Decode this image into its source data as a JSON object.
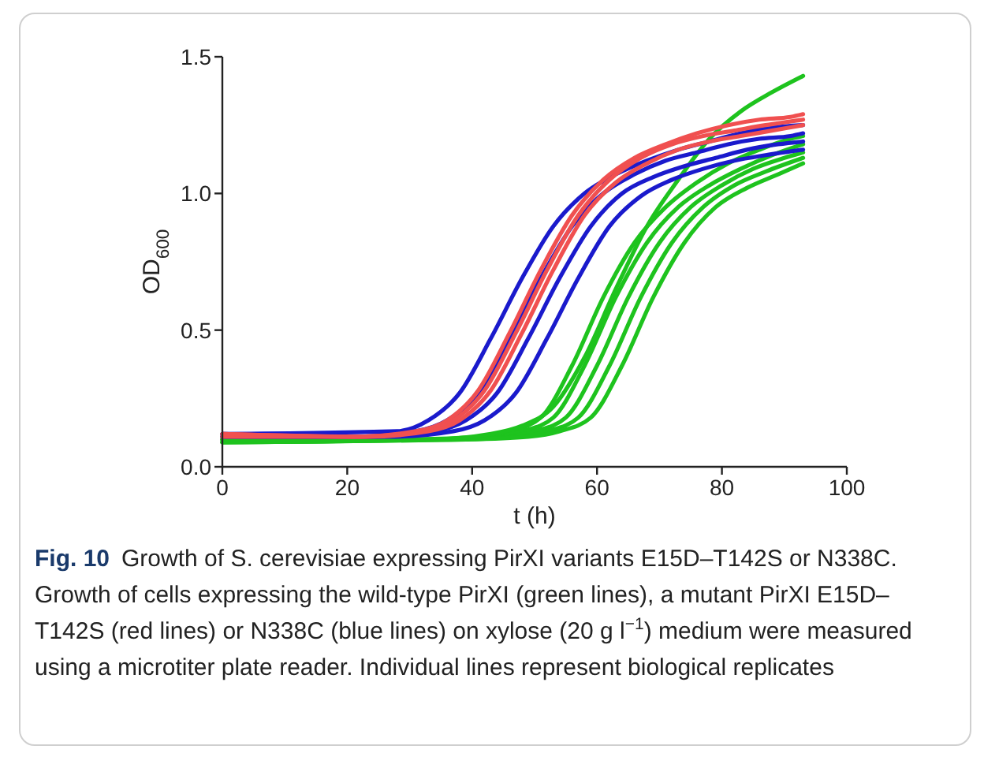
{
  "chart_data": {
    "type": "line",
    "xlabel": "t (h)",
    "ylabel": "OD$_{600}$",
    "xlim": [
      0,
      100
    ],
    "xticks": [
      0,
      20,
      40,
      60,
      80,
      100
    ],
    "ylim": [
      0,
      1.5
    ],
    "yticks": [
      {
        "value": 0,
        "label": "0.0"
      },
      {
        "value": 0.5,
        "label": "0.5"
      },
      {
        "value": 1,
        "label": "1.0"
      },
      {
        "value": 1.5,
        "label": "1.5"
      }
    ],
    "grid": false,
    "annotations": [
      "Fig. 10",
      "Growth of S. cerevisiae expressing PirXI variants E15D–T142S or N338C. Growth of cells expressing the wild-type PirXI (green lines), a mutant PirXI E15D–T142S (red lines) or N338C (blue lines) on xylose (20 g l$^{−1}$) medium were measured using a microtiter plate reader. Individual lines represent biological replicates"
    ],
    "series": [
      {
        "color": "#1ec31e",
        "x": [
          0,
          31,
          41,
          46,
          51,
          56,
          61,
          66,
          71,
          76,
          81,
          86,
          91,
          93
        ],
        "values": [
          0.09,
          0.1,
          0.11,
          0.13,
          0.18,
          0.37,
          0.62,
          0.82,
          0.95,
          1.04,
          1.11,
          1.16,
          1.2,
          1.21
        ]
      },
      {
        "color": "#1ec31e",
        "x": [
          0,
          33,
          43,
          48,
          53,
          58,
          63,
          68,
          73,
          78,
          83,
          88,
          93
        ],
        "values": [
          0.1,
          0.1,
          0.11,
          0.13,
          0.18,
          0.37,
          0.62,
          0.82,
          0.95,
          1.03,
          1.09,
          1.14,
          1.18
        ]
      },
      {
        "color": "#1ec31e",
        "x": [
          0,
          35,
          45,
          50,
          55,
          60,
          65,
          70,
          75,
          80,
          85,
          90,
          93
        ],
        "values": [
          0.09,
          0.1,
          0.11,
          0.13,
          0.18,
          0.37,
          0.62,
          0.82,
          0.95,
          1.03,
          1.09,
          1.13,
          1.15
        ]
      },
      {
        "color": "#1ec31e",
        "x": [
          0,
          37,
          47,
          52,
          57,
          62,
          67,
          72,
          77,
          82,
          87,
          93
        ],
        "values": [
          0.1,
          0.1,
          0.11,
          0.13,
          0.18,
          0.37,
          0.62,
          0.82,
          0.95,
          1.03,
          1.08,
          1.13
        ]
      },
      {
        "color": "#1ec31e",
        "x": [
          0,
          39,
          49,
          54,
          59,
          64,
          69,
          74,
          79,
          84,
          89,
          93
        ],
        "values": [
          0.09,
          0.1,
          0.11,
          0.13,
          0.18,
          0.37,
          0.62,
          0.82,
          0.95,
          1.02,
          1.07,
          1.11
        ]
      },
      {
        "color": "#1ec31e",
        "x": [
          0,
          33,
          43,
          48,
          53,
          58,
          63,
          68,
          73,
          78,
          83,
          88,
          93
        ],
        "values": [
          0.1,
          0.1,
          0.12,
          0.15,
          0.22,
          0.4,
          0.65,
          0.88,
          1.05,
          1.2,
          1.3,
          1.37,
          1.43
        ]
      },
      {
        "color": "#1a1acc",
        "x": [
          0,
          18,
          28,
          33,
          38,
          43,
          48,
          53,
          58,
          63,
          68,
          73,
          78,
          83,
          88,
          93
        ],
        "values": [
          0.12,
          null,
          0.13,
          0.17,
          0.27,
          0.47,
          0.69,
          0.88,
          1.0,
          1.07,
          1.12,
          1.16,
          1.19,
          1.22,
          1.24,
          1.25
        ]
      },
      {
        "color": "#1a1acc",
        "x": [
          0,
          21,
          31,
          36,
          41,
          46,
          51,
          56,
          61,
          66,
          71,
          76,
          81,
          86,
          91,
          93
        ],
        "values": [
          0.11,
          0.11,
          0.13,
          0.17,
          0.27,
          0.47,
          0.69,
          0.88,
          1.0,
          1.07,
          1.12,
          1.15,
          1.18,
          1.2,
          1.21,
          1.22
        ]
      },
      {
        "color": "#1a1acc",
        "x": [
          0,
          24,
          34,
          39,
          44,
          49,
          54,
          59,
          64,
          69,
          74,
          79,
          84,
          89,
          93
        ],
        "values": [
          0.12,
          0.11,
          0.13,
          0.17,
          0.27,
          0.47,
          0.69,
          0.88,
          1.0,
          1.06,
          1.1,
          1.13,
          1.16,
          1.18,
          1.19
        ]
      },
      {
        "color": "#1a1acc",
        "x": [
          0,
          27,
          37,
          42,
          47,
          52,
          57,
          62,
          67,
          72,
          77,
          82,
          87,
          93
        ],
        "values": [
          0.11,
          0.11,
          0.13,
          0.17,
          0.27,
          0.47,
          0.69,
          0.88,
          0.99,
          1.05,
          1.09,
          1.12,
          1.14,
          1.16
        ]
      },
      {
        "color": "#f05050",
        "x": [
          0,
          21,
          31,
          36,
          41,
          46,
          51,
          56,
          61,
          66,
          71,
          76,
          81,
          86,
          91,
          93
        ],
        "values": [
          0.12,
          0.11,
          0.13,
          0.17,
          0.28,
          0.49,
          0.72,
          0.92,
          1.05,
          1.13,
          1.18,
          1.22,
          1.25,
          1.27,
          1.28,
          1.29
        ]
      },
      {
        "color": "#f05050",
        "x": [
          0,
          22,
          32,
          37,
          42,
          47,
          52,
          57,
          62,
          67,
          72,
          77,
          82,
          87,
          93
        ],
        "values": [
          0.11,
          0.11,
          0.13,
          0.17,
          0.28,
          0.49,
          0.72,
          0.92,
          1.05,
          1.13,
          1.18,
          1.21,
          1.23,
          1.25,
          1.27
        ]
      },
      {
        "color": "#f05050",
        "x": [
          0,
          23,
          33,
          38,
          43,
          48,
          53,
          58,
          63,
          68,
          73,
          78,
          83,
          88,
          93
        ],
        "values": [
          0.12,
          0.11,
          0.13,
          0.17,
          0.28,
          0.49,
          0.72,
          0.92,
          1.04,
          1.11,
          1.16,
          1.19,
          1.21,
          1.23,
          1.25
        ]
      }
    ]
  }
}
